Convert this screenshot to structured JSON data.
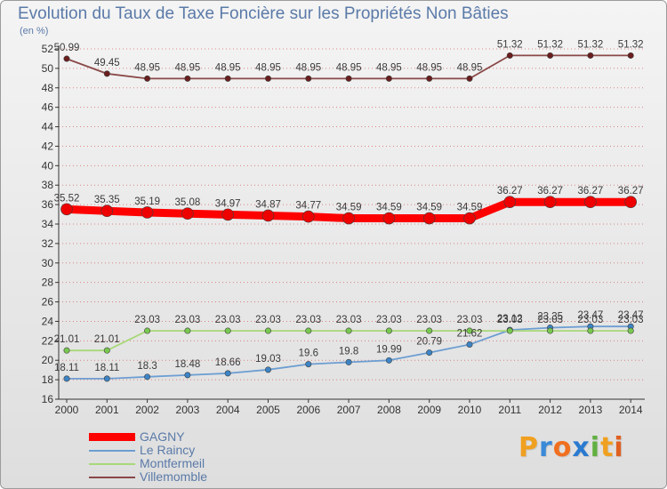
{
  "title": "Evolution du Taux de Taxe Foncière sur les Propriétés Non Bâties",
  "unit": "(en %)",
  "logo": "Proxiti",
  "colors": {
    "title": "#5a7aa8",
    "text": "#333333",
    "axis": "#333333",
    "grid": "#d04040"
  },
  "chart_data": {
    "type": "line",
    "title": "Evolution du Taux de Taxe Foncière sur les Propriétés Non Bâties",
    "ylabel": "(en %)",
    "ylim": [
      16,
      52
    ],
    "ytick_step": 2,
    "categories": [
      "2000",
      "2001",
      "2002",
      "2003",
      "2004",
      "2005",
      "2006",
      "2007",
      "2008",
      "2009",
      "2010",
      "2011",
      "2012",
      "2013",
      "2014"
    ],
    "series": [
      {
        "name": "GAGNY",
        "color": "#ff0000",
        "marker": "#ee0000",
        "thick": true,
        "values": [
          35.52,
          35.35,
          35.19,
          35.08,
          34.97,
          34.87,
          34.77,
          34.59,
          34.59,
          34.59,
          34.59,
          36.27,
          36.27,
          36.27,
          36.27
        ],
        "labels": [
          "35.52",
          "35.35",
          "35.19",
          "35.08",
          "34.97",
          "34.87",
          "34.77",
          "34.59",
          "34.59",
          "34.59",
          "34.59",
          "36.27",
          "36.27",
          "36.27",
          "36.27"
        ]
      },
      {
        "name": "Le Raincy",
        "color": "#6d9ed2",
        "marker": "#3d84c6",
        "thick": false,
        "values": [
          18.11,
          18.11,
          18.3,
          18.48,
          18.66,
          19.03,
          19.6,
          19.8,
          19.99,
          20.79,
          21.62,
          23.12,
          23.35,
          23.47,
          23.47
        ],
        "labels": [
          "18.11",
          "18.11",
          "18.3",
          "18.48",
          "18.66",
          "19.03",
          "19.6",
          "19.8",
          "19.99",
          "20.79",
          "21.62",
          "23.12",
          "23.35",
          "23.47",
          "23.47"
        ]
      },
      {
        "name": "Montfermeil",
        "color": "#a8d878",
        "marker": "#78c850",
        "thick": false,
        "values": [
          21.01,
          21.01,
          23.03,
          23.03,
          23.03,
          23.03,
          23.03,
          23.03,
          23.03,
          23.03,
          23.03,
          23.03,
          23.03,
          23.03,
          23.03
        ],
        "labels": [
          "21.01",
          "21.01",
          "23.03",
          "23.03",
          "23.03",
          "23.03",
          "23.03",
          "23.03",
          "23.03",
          "23.03",
          "23.03",
          "23.03",
          "23.03",
          "23.03",
          "23.03"
        ]
      },
      {
        "name": "Villemomble",
        "color": "#8a4848",
        "marker": "#6a1e1e",
        "thick": false,
        "values": [
          50.99,
          49.45,
          48.95,
          48.95,
          48.95,
          48.95,
          48.95,
          48.95,
          48.95,
          48.95,
          48.95,
          51.32,
          51.32,
          51.32,
          51.32
        ],
        "labels": [
          "50.99",
          "49.45",
          "48.95",
          "48.95",
          "48.95",
          "48.95",
          "48.95",
          "48.95",
          "48.95",
          "48.95",
          "48.95",
          "51.32",
          "51.32",
          "51.32",
          "51.32"
        ]
      }
    ]
  }
}
